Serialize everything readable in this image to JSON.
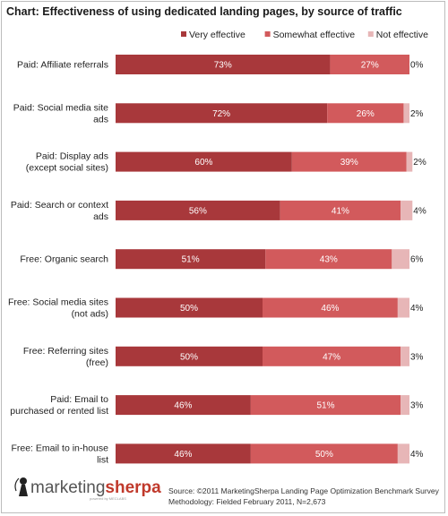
{
  "chart_data": {
    "type": "bar",
    "orientation": "horizontal",
    "stacked": true,
    "title": "Chart: Effectiveness of using dedicated landing pages, by source of traffic",
    "categories": [
      [
        "Paid:  Affiliate referrals"
      ],
      [
        "Paid:  Social media site",
        "ads"
      ],
      [
        "Paid:  Display ads",
        "(except social sites)"
      ],
      [
        "Paid:  Search or context",
        "ads"
      ],
      [
        "Free:  Organic search"
      ],
      [
        "Free:  Social media sites",
        "(not ads)"
      ],
      [
        "Free:  Referring sites",
        "(free)"
      ],
      [
        "Paid:  Email  to",
        "purchased or rented list"
      ],
      [
        "Free:  Email to in-house",
        "list"
      ]
    ],
    "series": [
      {
        "name": "Very effective",
        "color": "#a8383b",
        "values": [
          73,
          72,
          60,
          56,
          51,
          50,
          50,
          46,
          46
        ]
      },
      {
        "name": "Somewhat effective",
        "color": "#d25a5c",
        "values": [
          27,
          26,
          39,
          41,
          43,
          46,
          47,
          51,
          50
        ]
      },
      {
        "name": "Not effective",
        "color": "#e7b6b7",
        "values": [
          0,
          2,
          2,
          4,
          6,
          4,
          3,
          3,
          4
        ]
      }
    ],
    "value_format": "{v}%",
    "xlim": [
      0,
      100
    ],
    "grid": false,
    "legend_position": "top-right"
  },
  "logo": {
    "prefix": "marketing",
    "suffix": "sherpa",
    "tagline": "powered by MECLABS",
    "prefix_color": "#555555",
    "suffix_color": "#c0392b"
  },
  "source_lines": [
    "Source: ©2011 MarketingSherpa Landing Page Optimization Benchmark Survey",
    "Methodology: Fielded February 2011, N=2,673"
  ]
}
